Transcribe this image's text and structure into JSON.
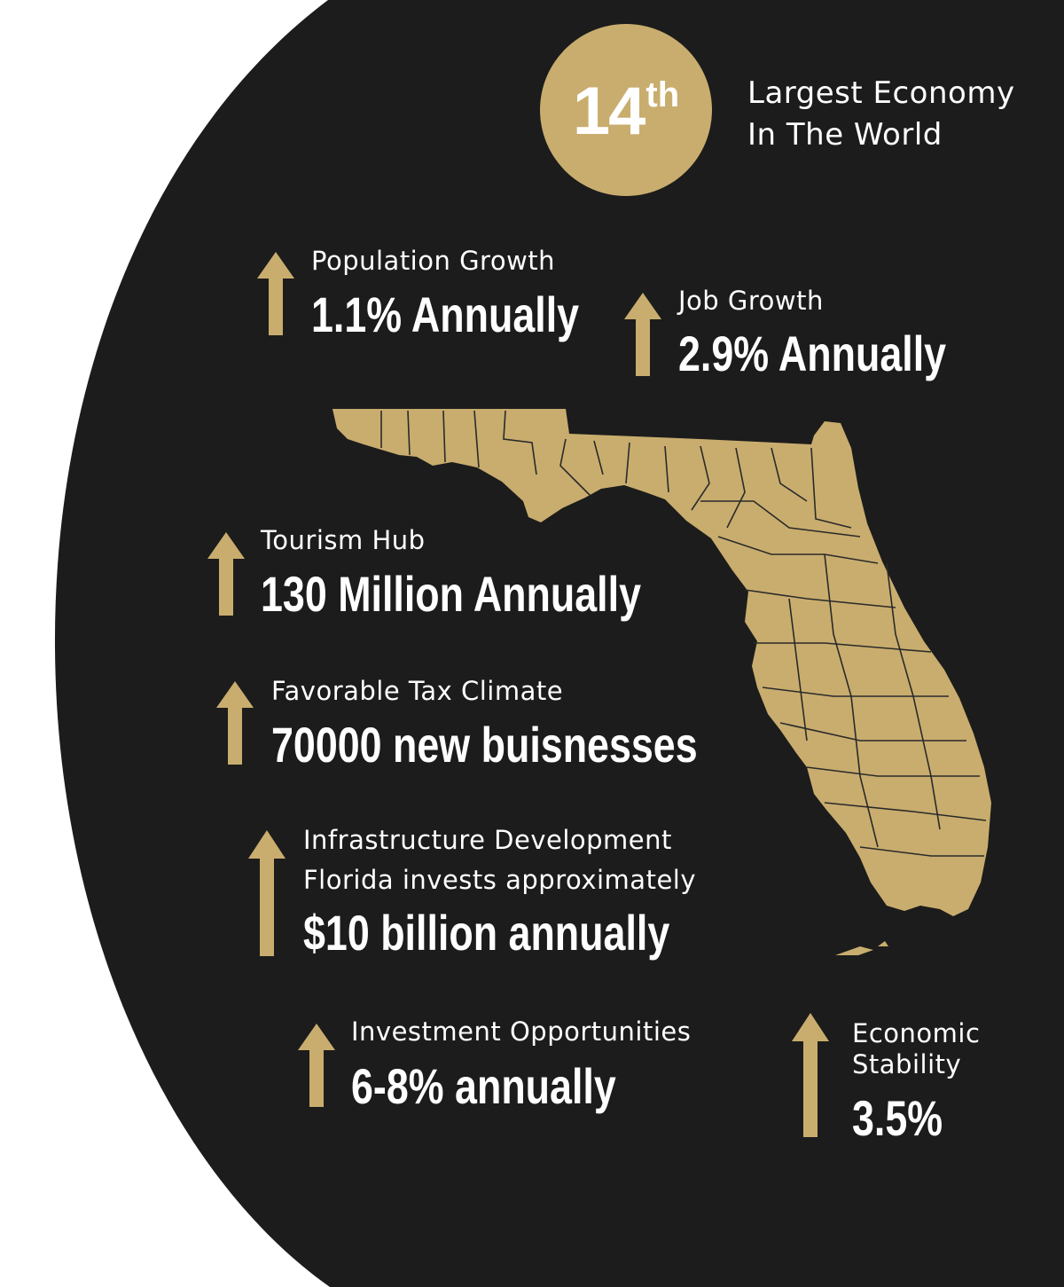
{
  "colors": {
    "background": "#1c1c1c",
    "accent": "#c9ad6e",
    "text": "#ffffff",
    "page": "#ffffff"
  },
  "rank": {
    "number": "14",
    "suffix": "th"
  },
  "headline": {
    "line1": "Largest Economy",
    "line2": "In The World"
  },
  "stats": {
    "population": {
      "label": "Population Growth",
      "value": "1.1% Annually",
      "icon": "arrow-up-icon"
    },
    "jobs": {
      "label": "Job Growth",
      "value": "2.9% Annually",
      "icon": "arrow-up-icon"
    },
    "tourism": {
      "label": "Tourism Hub",
      "value": "130 Million Annually",
      "icon": "arrow-up-icon"
    },
    "tax": {
      "label": "Favorable Tax Climate",
      "value": "70000 new buisnesses",
      "icon": "arrow-up-icon"
    },
    "infrastructure": {
      "label": "Infrastructure Development",
      "sublabel": "Florida invests approximately",
      "value": "$10 billion annually",
      "icon": "arrow-up-icon"
    },
    "investment": {
      "label": "Investment Opportunities",
      "value": "6-8% annually",
      "icon": "arrow-up-icon"
    },
    "stability": {
      "label_line1": "Economic",
      "label_line2": "Stability",
      "value": "3.5%",
      "icon": "arrow-up-icon"
    }
  },
  "map": {
    "icon": "florida-map-icon"
  }
}
